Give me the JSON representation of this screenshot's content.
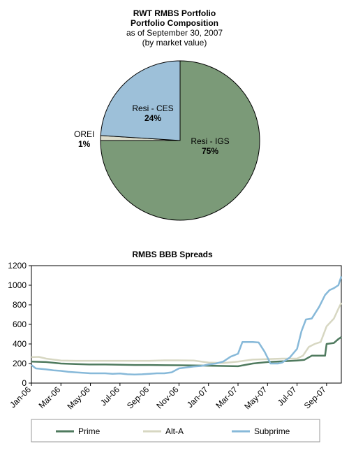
{
  "pie_header": {
    "title": "RWT RMBS Portfolio",
    "subtitle": "Portfolio Composition",
    "date_line": "as of September 30, 2007",
    "basis_line": "(by market value)"
  },
  "line_header": {
    "title": "RMBS BBB Spreads"
  },
  "colors": {
    "resi_igs": "#7b9a78",
    "resi_ces": "#9dc0d9",
    "orei": "#dcdccb",
    "prime": "#4f7a5e",
    "alt_a": "#d7d7c2",
    "subprime": "#87b9d9"
  },
  "chart_data": [
    {
      "type": "pie",
      "title": "RWT RMBS Portfolio",
      "subtitle": "Portfolio Composition as of September 30, 2007 (by market value)",
      "slices": [
        {
          "name": "Resi - IGS",
          "value": 75,
          "label": "75%"
        },
        {
          "name": "OREI",
          "value": 1,
          "label": "1%"
        },
        {
          "name": "Resi - CES",
          "value": 24,
          "label": "24%"
        }
      ]
    },
    {
      "type": "line",
      "title": "RMBS BBB Spreads",
      "xlabel": "",
      "ylabel": "",
      "ylim": [
        0,
        1200
      ],
      "yticks": [
        0,
        200,
        400,
        600,
        800,
        1000,
        1200
      ],
      "xtick_labels": [
        "Jan-06",
        "Mar-06",
        "May-06",
        "Jul-06",
        "Sep-06",
        "Nov-06",
        "Jan-07",
        "Mar-07",
        "May-07",
        "Jul-07",
        "Sep-07"
      ],
      "x_range_months": [
        0,
        21
      ],
      "legend": {
        "position": "bottom",
        "entries": [
          "Prime",
          "Alt-A",
          "Subprime"
        ]
      },
      "grid": false,
      "series": [
        {
          "name": "Prime",
          "points": [
            [
              0,
              220
            ],
            [
              1,
              215
            ],
            [
              2,
              200
            ],
            [
              3,
              195
            ],
            [
              4,
              190
            ],
            [
              5,
              190
            ],
            [
              6,
              188
            ],
            [
              7,
              185
            ],
            [
              8,
              185
            ],
            [
              9,
              183
            ],
            [
              10,
              182
            ],
            [
              11,
              180
            ],
            [
              12,
              178
            ],
            [
              13,
              175
            ],
            [
              14,
              172
            ],
            [
              15,
              200
            ],
            [
              16,
              215
            ],
            [
              17,
              222
            ],
            [
              18,
              230
            ],
            [
              18.5,
              238
            ],
            [
              19,
              280
            ],
            [
              19.5,
              280
            ],
            [
              19.9,
              280
            ],
            [
              20,
              400
            ],
            [
              20.5,
              410
            ],
            [
              20.8,
              450
            ],
            [
              21,
              470
            ]
          ]
        },
        {
          "name": "Alt-A",
          "points": [
            [
              0,
              265
            ],
            [
              0.5,
              268
            ],
            [
              1,
              250
            ],
            [
              1.5,
              240
            ],
            [
              2,
              230
            ],
            [
              3,
              228
            ],
            [
              4,
              228
            ],
            [
              5,
              228
            ],
            [
              6,
              228
            ],
            [
              7,
              228
            ],
            [
              8,
              228
            ],
            [
              9,
              232
            ],
            [
              10,
              232
            ],
            [
              11,
              230
            ],
            [
              12,
              210
            ],
            [
              13,
              205
            ],
            [
              14,
              220
            ],
            [
              15,
              240
            ],
            [
              16,
              245
            ],
            [
              17,
              250
            ],
            [
              18,
              250
            ],
            [
              18.4,
              280
            ],
            [
              18.8,
              370
            ],
            [
              19.2,
              400
            ],
            [
              19.6,
              420
            ],
            [
              20,
              580
            ],
            [
              20.5,
              660
            ],
            [
              20.8,
              760
            ],
            [
              21,
              820
            ]
          ]
        },
        {
          "name": "Subprime",
          "points": [
            [
              0,
              185
            ],
            [
              0.3,
              150
            ],
            [
              1,
              140
            ],
            [
              1.5,
              130
            ],
            [
              2,
              125
            ],
            [
              2.5,
              115
            ],
            [
              3,
              110
            ],
            [
              4,
              100
            ],
            [
              5,
              100
            ],
            [
              5.5,
              95
            ],
            [
              6,
              98
            ],
            [
              6.5,
              90
            ],
            [
              7,
              88
            ],
            [
              7.5,
              90
            ],
            [
              8,
              95
            ],
            [
              8.5,
              100
            ],
            [
              9,
              100
            ],
            [
              9.5,
              110
            ],
            [
              10,
              150
            ],
            [
              10.5,
              160
            ],
            [
              11,
              170
            ],
            [
              11.5,
              175
            ],
            [
              12,
              190
            ],
            [
              12.5,
              200
            ],
            [
              13,
              220
            ],
            [
              13.5,
              270
            ],
            [
              14,
              300
            ],
            [
              14.3,
              420
            ],
            [
              15,
              420
            ],
            [
              15.4,
              415
            ],
            [
              15.8,
              320
            ],
            [
              16.2,
              200
            ],
            [
              16.7,
              200
            ],
            [
              17,
              210
            ],
            [
              17.5,
              260
            ],
            [
              18,
              350
            ],
            [
              18.3,
              530
            ],
            [
              18.6,
              650
            ],
            [
              19,
              660
            ],
            [
              19.5,
              780
            ],
            [
              19.9,
              900
            ],
            [
              20.2,
              950
            ],
            [
              20.5,
              970
            ],
            [
              20.8,
              1000
            ],
            [
              21,
              1090
            ]
          ]
        }
      ]
    }
  ]
}
